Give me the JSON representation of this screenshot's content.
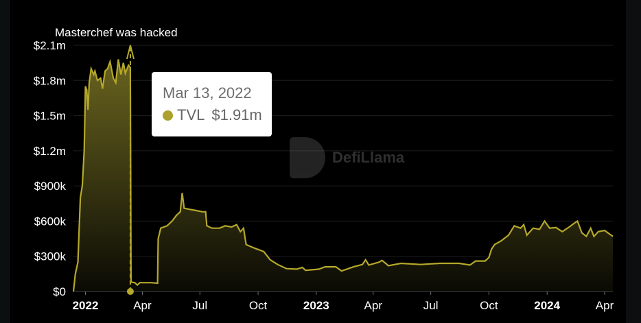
{
  "chart_data": {
    "type": "area",
    "annotation": "Masterchef was hacked",
    "annotation_date": "2022-03-13",
    "ylim": [
      0,
      2100000
    ],
    "y_ticks": [
      "$0",
      "$300k",
      "$600k",
      "$900k",
      "$1.2m",
      "$1.5m",
      "$1.8m",
      "$2.1m"
    ],
    "x_ticks": [
      {
        "date": "2022-01-01",
        "label": "2022",
        "bold": true
      },
      {
        "date": "2022-04-01",
        "label": "Apr",
        "bold": false
      },
      {
        "date": "2022-07-01",
        "label": "Jul",
        "bold": false
      },
      {
        "date": "2022-10-01",
        "label": "Oct",
        "bold": false
      },
      {
        "date": "2023-01-01",
        "label": "2023",
        "bold": true
      },
      {
        "date": "2023-04-01",
        "label": "Apr",
        "bold": false
      },
      {
        "date": "2023-07-01",
        "label": "Jul",
        "bold": false
      },
      {
        "date": "2023-10-01",
        "label": "Oct",
        "bold": false
      },
      {
        "date": "2024-01-01",
        "label": "2024",
        "bold": true
      },
      {
        "date": "2024-04-01",
        "label": "Apr",
        "bold": false
      }
    ],
    "xlim": [
      "2021-12-13",
      "2024-04-14"
    ],
    "grid": true,
    "series": [
      {
        "name": "TVL",
        "color": "#b5a82a",
        "points": [
          [
            "2021-12-13",
            0
          ],
          [
            "2021-12-16",
            150000
          ],
          [
            "2021-12-20",
            250000
          ],
          [
            "2021-12-24",
            800000
          ],
          [
            "2021-12-27",
            900000
          ],
          [
            "2021-12-30",
            1200000
          ],
          [
            "2022-01-01",
            1750000
          ],
          [
            "2022-01-03",
            1720000
          ],
          [
            "2022-01-05",
            1550000
          ],
          [
            "2022-01-07",
            1780000
          ],
          [
            "2022-01-10",
            1900000
          ],
          [
            "2022-01-14",
            1850000
          ],
          [
            "2022-01-16",
            1880000
          ],
          [
            "2022-01-20",
            1800000
          ],
          [
            "2022-01-25",
            1820000
          ],
          [
            "2022-01-28",
            1730000
          ],
          [
            "2022-02-01",
            1880000
          ],
          [
            "2022-02-05",
            1900000
          ],
          [
            "2022-02-09",
            1960000
          ],
          [
            "2022-02-14",
            1820000
          ],
          [
            "2022-02-18",
            1780000
          ],
          [
            "2022-02-22",
            1980000
          ],
          [
            "2022-02-26",
            1850000
          ],
          [
            "2022-03-02",
            1950000
          ],
          [
            "2022-03-05",
            1860000
          ],
          [
            "2022-03-10",
            1930000
          ],
          [
            "2022-03-13",
            1910000
          ],
          [
            "2022-03-14",
            80000
          ],
          [
            "2022-03-20",
            75000
          ],
          [
            "2022-03-24",
            55000
          ],
          [
            "2022-03-28",
            75000
          ],
          [
            "2022-04-15",
            75000
          ],
          [
            "2022-04-25",
            70000
          ],
          [
            "2022-04-26",
            450000
          ],
          [
            "2022-04-30",
            540000
          ],
          [
            "2022-05-10",
            560000
          ],
          [
            "2022-05-18",
            600000
          ],
          [
            "2022-05-25",
            650000
          ],
          [
            "2022-05-31",
            680000
          ],
          [
            "2022-06-03",
            840000
          ],
          [
            "2022-06-06",
            710000
          ],
          [
            "2022-06-15",
            700000
          ],
          [
            "2022-06-25",
            690000
          ],
          [
            "2022-07-05",
            680000
          ],
          [
            "2022-07-10",
            680000
          ],
          [
            "2022-07-12",
            560000
          ],
          [
            "2022-07-20",
            540000
          ],
          [
            "2022-08-01",
            540000
          ],
          [
            "2022-08-10",
            560000
          ],
          [
            "2022-08-20",
            550000
          ],
          [
            "2022-08-28",
            570000
          ],
          [
            "2022-09-03",
            510000
          ],
          [
            "2022-09-08",
            540000
          ],
          [
            "2022-09-12",
            400000
          ],
          [
            "2022-09-25",
            370000
          ],
          [
            "2022-10-10",
            340000
          ],
          [
            "2022-10-20",
            270000
          ],
          [
            "2022-11-01",
            230000
          ],
          [
            "2022-11-15",
            195000
          ],
          [
            "2022-12-01",
            190000
          ],
          [
            "2022-12-10",
            205000
          ],
          [
            "2022-12-15",
            180000
          ],
          [
            "2023-01-05",
            190000
          ],
          [
            "2023-01-15",
            210000
          ],
          [
            "2023-02-01",
            210000
          ],
          [
            "2023-02-10",
            175000
          ],
          [
            "2023-03-01",
            210000
          ],
          [
            "2023-03-15",
            230000
          ],
          [
            "2023-03-20",
            270000
          ],
          [
            "2023-03-25",
            225000
          ],
          [
            "2023-04-10",
            250000
          ],
          [
            "2023-04-15",
            265000
          ],
          [
            "2023-04-25",
            220000
          ],
          [
            "2023-05-15",
            240000
          ],
          [
            "2023-06-15",
            230000
          ],
          [
            "2023-07-15",
            240000
          ],
          [
            "2023-08-15",
            240000
          ],
          [
            "2023-09-01",
            225000
          ],
          [
            "2023-09-10",
            260000
          ],
          [
            "2023-09-25",
            260000
          ],
          [
            "2023-10-01",
            290000
          ],
          [
            "2023-10-05",
            360000
          ],
          [
            "2023-10-10",
            400000
          ],
          [
            "2023-10-20",
            430000
          ],
          [
            "2023-11-01",
            480000
          ],
          [
            "2023-11-10",
            560000
          ],
          [
            "2023-11-20",
            540000
          ],
          [
            "2023-11-25",
            570000
          ],
          [
            "2023-11-30",
            480000
          ],
          [
            "2023-12-10",
            540000
          ],
          [
            "2023-12-20",
            530000
          ],
          [
            "2023-12-28",
            600000
          ],
          [
            "2024-01-05",
            540000
          ],
          [
            "2024-01-15",
            545000
          ],
          [
            "2024-01-25",
            510000
          ],
          [
            "2024-02-05",
            550000
          ],
          [
            "2024-02-15",
            590000
          ],
          [
            "2024-02-18",
            600000
          ],
          [
            "2024-02-25",
            500000
          ],
          [
            "2024-03-03",
            470000
          ],
          [
            "2024-03-10",
            540000
          ],
          [
            "2024-03-15",
            470000
          ],
          [
            "2024-03-22",
            510000
          ],
          [
            "2024-04-01",
            520000
          ],
          [
            "2024-04-14",
            470000
          ]
        ]
      }
    ]
  },
  "tooltip": {
    "date": "Mar 13, 2022",
    "series": "TVL",
    "value": "$1.91m"
  },
  "watermark": "DefiLlama"
}
